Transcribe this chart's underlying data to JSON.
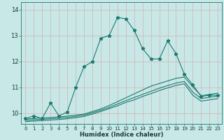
{
  "xlabel": "Humidex (Indice chaleur)",
  "bg_color": "#c8e8e8",
  "grid_color": "#aed4d4",
  "line_color": "#1a7a6e",
  "xlim": [
    -0.5,
    23.5
  ],
  "ylim": [
    9.6,
    14.3
  ],
  "yticks": [
    10,
    11,
    12,
    13,
    14
  ],
  "xticks": [
    0,
    1,
    2,
    3,
    4,
    5,
    6,
    7,
    8,
    9,
    10,
    11,
    12,
    13,
    14,
    15,
    16,
    17,
    18,
    19,
    20,
    21,
    22,
    23
  ],
  "main_line_x": [
    0,
    1,
    2,
    3,
    4,
    5,
    6,
    7,
    8,
    9,
    10,
    11,
    12,
    13,
    14,
    15,
    16,
    17,
    18,
    19,
    20,
    21,
    22,
    23
  ],
  "main_line_y": [
    9.8,
    9.9,
    9.8,
    10.4,
    9.9,
    10.05,
    11.0,
    11.8,
    12.0,
    12.9,
    13.0,
    13.7,
    13.65,
    13.2,
    12.5,
    12.1,
    12.1,
    12.8,
    12.3,
    11.5,
    11.1,
    10.65,
    10.7,
    10.7
  ],
  "line2_x": [
    0,
    1,
    2,
    3,
    4,
    5,
    6,
    7,
    8,
    9,
    10,
    11,
    12,
    13,
    14,
    15,
    16,
    17,
    18,
    19,
    20,
    21,
    22,
    23
  ],
  "line2_y": [
    9.78,
    9.8,
    9.82,
    9.84,
    9.86,
    9.89,
    9.93,
    9.97,
    10.07,
    10.17,
    10.3,
    10.45,
    10.6,
    10.75,
    10.9,
    11.05,
    11.15,
    11.25,
    11.35,
    11.4,
    11.02,
    10.68,
    10.73,
    10.78
  ],
  "line3_x": [
    0,
    1,
    2,
    3,
    4,
    5,
    6,
    7,
    8,
    9,
    10,
    11,
    12,
    13,
    14,
    15,
    16,
    17,
    18,
    19,
    20,
    21,
    22,
    23
  ],
  "line3_y": [
    9.73,
    9.75,
    9.77,
    9.79,
    9.81,
    9.84,
    9.88,
    9.93,
    10.02,
    10.12,
    10.23,
    10.36,
    10.49,
    10.61,
    10.73,
    10.85,
    10.97,
    11.07,
    11.17,
    11.23,
    10.82,
    10.57,
    10.62,
    10.67
  ],
  "line4_x": [
    0,
    1,
    2,
    3,
    4,
    5,
    6,
    7,
    8,
    9,
    10,
    11,
    12,
    13,
    14,
    15,
    16,
    17,
    18,
    19,
    20,
    21,
    22,
    23
  ],
  "line4_y": [
    9.68,
    9.7,
    9.72,
    9.74,
    9.76,
    9.79,
    9.83,
    9.88,
    9.97,
    10.07,
    10.18,
    10.29,
    10.42,
    10.52,
    10.65,
    10.76,
    10.88,
    10.98,
    11.08,
    11.14,
    10.7,
    10.47,
    10.52,
    10.57
  ]
}
